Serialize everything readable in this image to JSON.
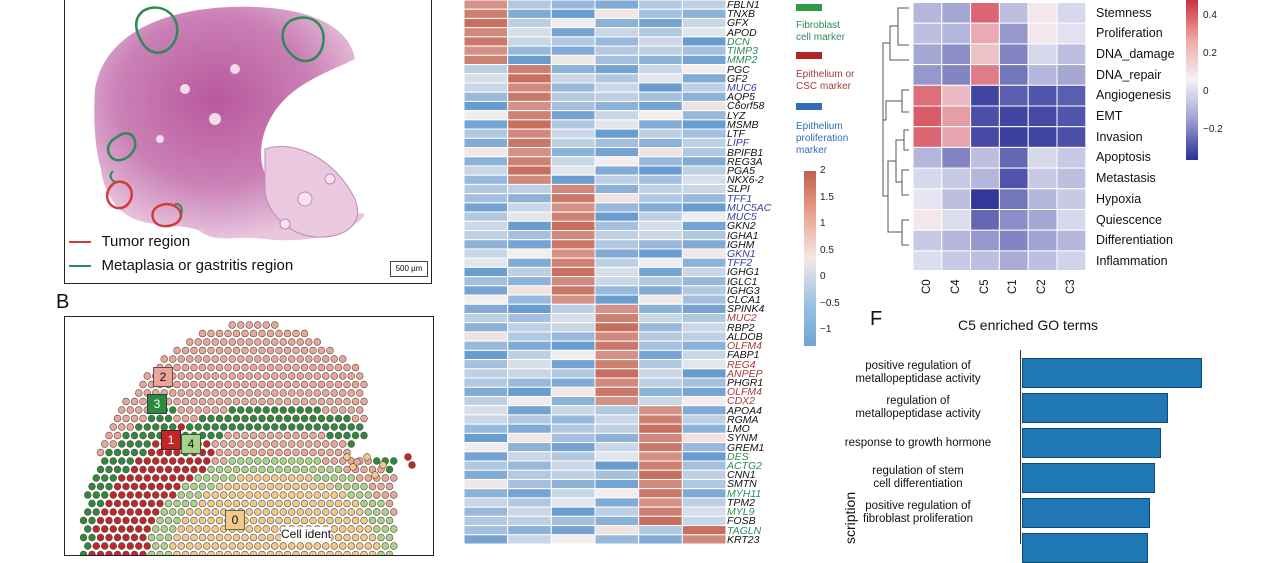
{
  "panels": {
    "a": {
      "legend": [
        {
          "label": "Tumor region",
          "color": "#d33b3b"
        },
        {
          "label": "Metaplasia or gastritis region",
          "color": "#2e8b57"
        }
      ],
      "scale_bar": "500 μm"
    },
    "b": {
      "label": "B",
      "clusters": [
        "2",
        "3",
        "1",
        "4",
        "0"
      ],
      "legend_title": "Cell ident"
    },
    "d": {
      "genes": [
        {
          "name": "FBLN1",
          "color": "#111"
        },
        {
          "name": "TNXB",
          "color": "#111"
        },
        {
          "name": "GFX",
          "color": "#111"
        },
        {
          "name": "APOD",
          "color": "#111"
        },
        {
          "name": "DCN",
          "color": "#2e8b57"
        },
        {
          "name": "TIMP3",
          "color": "#2e8b57"
        },
        {
          "name": "MMP2",
          "color": "#2e8b57"
        },
        {
          "name": "PGC",
          "color": "#111"
        },
        {
          "name": "GF2",
          "color": "#111"
        },
        {
          "name": "MUC6",
          "color": "#3a3f9a"
        },
        {
          "name": "AQP5",
          "color": "#111"
        },
        {
          "name": "C6orf58",
          "color": "#111"
        },
        {
          "name": "LYZ",
          "color": "#111"
        },
        {
          "name": "MSMB",
          "color": "#111"
        },
        {
          "name": "LTF",
          "color": "#111"
        },
        {
          "name": "LIPF",
          "color": "#3a3f9a"
        },
        {
          "name": "BPIFB1",
          "color": "#111"
        },
        {
          "name": "REG3A",
          "color": "#111"
        },
        {
          "name": "PGA5",
          "color": "#111"
        },
        {
          "name": "NKX6-2",
          "color": "#111"
        },
        {
          "name": "SLPI",
          "color": "#111"
        },
        {
          "name": "TFF1",
          "color": "#3a3f9a"
        },
        {
          "name": "MUC5AC",
          "color": "#3a3f9a"
        },
        {
          "name": "MUC5",
          "color": "#3a3f9a"
        },
        {
          "name": "GKN2",
          "color": "#111"
        },
        {
          "name": "IGHA1",
          "color": "#111"
        },
        {
          "name": "IGHM",
          "color": "#111"
        },
        {
          "name": "GKN1",
          "color": "#3a3f9a"
        },
        {
          "name": "TFF2",
          "color": "#3a3f9a"
        },
        {
          "name": "IGHG1",
          "color": "#111"
        },
        {
          "name": "IGLC1",
          "color": "#111"
        },
        {
          "name": "IGHG3",
          "color": "#111"
        },
        {
          "name": "CLCA1",
          "color": "#111"
        },
        {
          "name": "SPINK4",
          "color": "#111"
        },
        {
          "name": "MUC2",
          "color": "#a33b3b"
        },
        {
          "name": "RBP2",
          "color": "#111"
        },
        {
          "name": "ALDOB",
          "color": "#111"
        },
        {
          "name": "OLFM4",
          "color": "#a33b3b"
        },
        {
          "name": "FABP1",
          "color": "#111"
        },
        {
          "name": "REG4",
          "color": "#a33b3b"
        },
        {
          "name": "ANPEP",
          "color": "#a33b3b"
        },
        {
          "name": "PHGR1",
          "color": "#111"
        },
        {
          "name": "OLFM4",
          "color": "#a33b3b"
        },
        {
          "name": "CDX2",
          "color": "#a33b3b"
        },
        {
          "name": "APOA4",
          "color": "#111"
        },
        {
          "name": "RGMA",
          "color": "#111"
        },
        {
          "name": "LMO",
          "color": "#111"
        },
        {
          "name": "SYNM",
          "color": "#111"
        },
        {
          "name": "GREM1",
          "color": "#111"
        },
        {
          "name": "DES",
          "color": "#2e8b57"
        },
        {
          "name": "ACTG2",
          "color": "#2e8b57"
        },
        {
          "name": "CNN1",
          "color": "#111"
        },
        {
          "name": "SMTN",
          "color": "#111"
        },
        {
          "name": "MYH11",
          "color": "#2e8b57"
        },
        {
          "name": "TPM2",
          "color": "#111"
        },
        {
          "name": "MYL9",
          "color": "#2e8b57"
        },
        {
          "name": "FOSB",
          "color": "#111"
        },
        {
          "name": "TAGLN",
          "color": "#2e8b57"
        },
        {
          "name": "KRT23",
          "color": "#111"
        }
      ],
      "marker_legend": [
        {
          "label": "Fibroblast\ncell marker",
          "color": "#2e9a4a"
        },
        {
          "label": "Epithelium or\nCSC marker",
          "color": "#b02525"
        },
        {
          "label": "Epithelium\nproliferation\nmarker",
          "color": "#2f6db5"
        }
      ],
      "colorbar_ticks": [
        "2",
        "1.5",
        "1",
        "0.5",
        "0",
        "−0.5",
        "−1"
      ]
    },
    "e": {
      "rows": [
        "Stemness",
        "Proliferation",
        "DNA_damage",
        "DNA_repair",
        "Angiogenesis",
        "EMT",
        "Invasion",
        "Apoptosis",
        "Metastasis",
        "Hypoxia",
        "Quiescence",
        "Differentiation",
        "Inflammation"
      ],
      "columns": [
        "C0",
        "C4",
        "C5",
        "C1",
        "C2",
        "C3"
      ],
      "colorbar_ticks": [
        "0.4",
        "0.2",
        "0",
        "−0.2"
      ],
      "values": [
        [
          -0.12,
          -0.15,
          0.3,
          -0.1,
          0.02,
          -0.05
        ],
        [
          -0.1,
          -0.12,
          0.15,
          -0.18,
          0.02,
          -0.03
        ],
        [
          -0.15,
          -0.2,
          0.1,
          -0.22,
          -0.05,
          -0.1
        ],
        [
          -0.18,
          -0.22,
          0.25,
          -0.25,
          -0.12,
          -0.15
        ],
        [
          0.28,
          0.12,
          -0.35,
          -0.3,
          -0.32,
          -0.3
        ],
        [
          0.32,
          0.18,
          -0.33,
          -0.35,
          -0.34,
          -0.32
        ],
        [
          0.3,
          0.16,
          -0.34,
          -0.36,
          -0.35,
          -0.33
        ],
        [
          -0.12,
          -0.22,
          -0.1,
          -0.28,
          -0.05,
          -0.08
        ],
        [
          -0.05,
          -0.08,
          -0.12,
          -0.32,
          -0.08,
          -0.1
        ],
        [
          -0.02,
          -0.1,
          -0.38,
          -0.25,
          -0.12,
          -0.08
        ],
        [
          0.02,
          -0.04,
          -0.28,
          -0.2,
          -0.15,
          -0.05
        ],
        [
          -0.08,
          -0.12,
          -0.18,
          -0.22,
          -0.16,
          -0.12
        ],
        [
          -0.04,
          -0.08,
          -0.1,
          -0.14,
          -0.1,
          -0.06
        ]
      ]
    },
    "f": {
      "label": "F",
      "title": "C5 enriched GO terms",
      "axis_label": "scription",
      "terms": [
        {
          "label": "positive regulation of\nmetallopeptidase activity",
          "value": 1.0
        },
        {
          "label": "regulation of\nmetallopeptidase activity",
          "value": 0.81
        },
        {
          "label": "response to growth hormone",
          "value": 0.77
        },
        {
          "label": "regulation of stem\ncell differentiation",
          "value": 0.74
        },
        {
          "label": "positive regulation of\nfibroblast proliferation",
          "value": 0.71
        },
        {
          "label": "",
          "value": 0.7
        }
      ]
    }
  }
}
